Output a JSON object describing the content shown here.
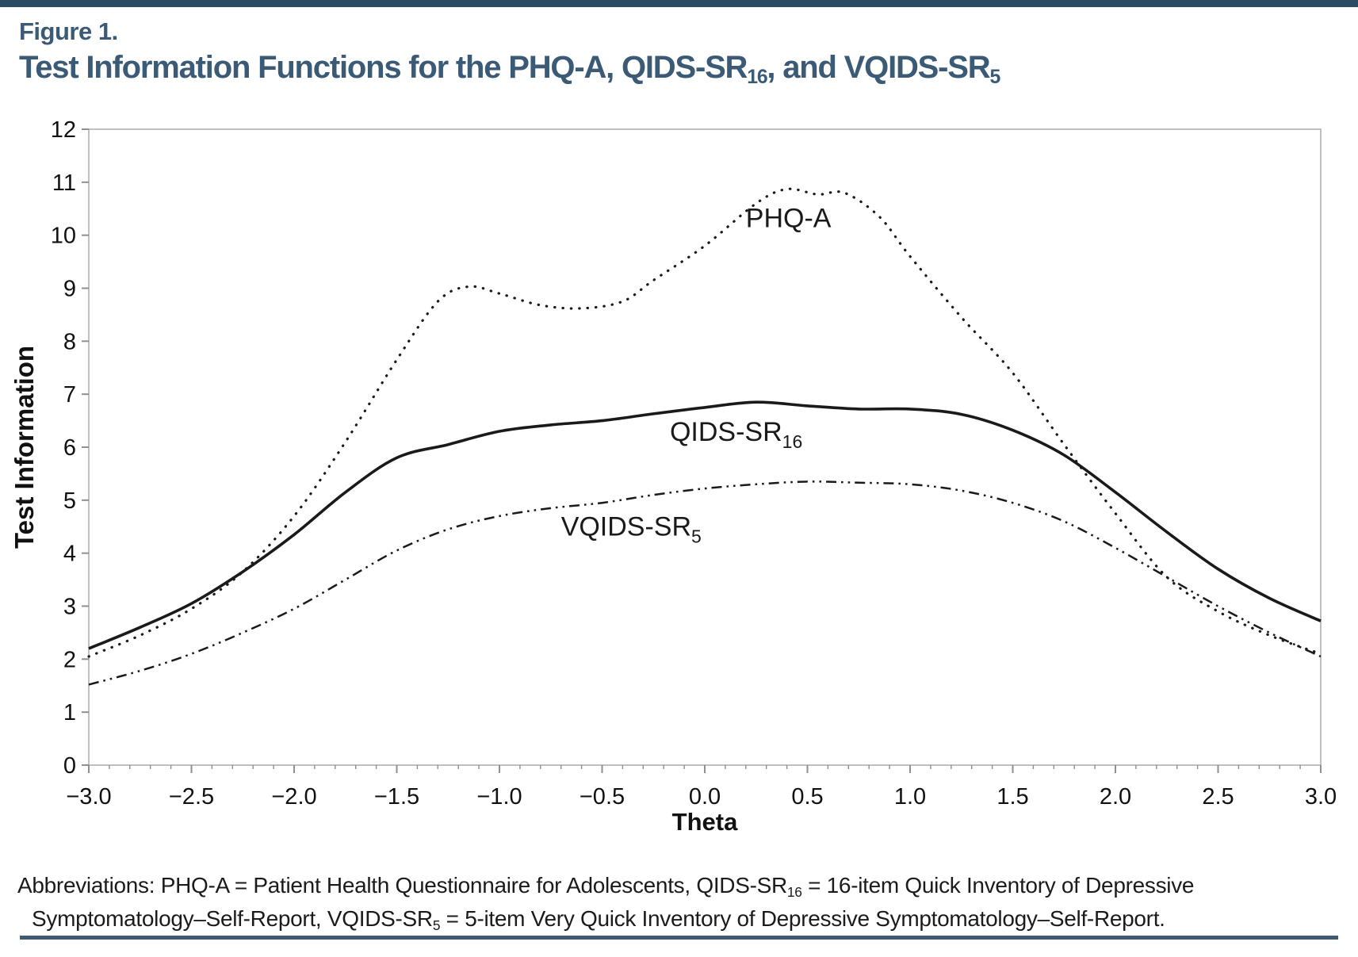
{
  "page": {
    "top_bar_color": "#2c4a64",
    "rule_color": "#3e5a75",
    "title_color": "#3b5a76",
    "text_color": "#1b1b1b"
  },
  "figure_label": "Figure 1.",
  "title_parts": [
    {
      "t": "Test Information Functions for the PHQ-A, QIDS-SR"
    },
    {
      "t": "16",
      "sub": true
    },
    {
      "t": ", and VQIDS-SR"
    },
    {
      "t": "5",
      "sub": true
    }
  ],
  "footnote_lines": [
    [
      {
        "t": "Abbreviations: PHQ-A = Patient Health Questionnaire for Adolescents, QIDS-SR"
      },
      {
        "t": "16",
        "sub": true
      },
      {
        "t": " = 16-item Quick Inventory of Depressive"
      }
    ],
    [
      {
        "t": "Symptomatology–Self-Report, VQIDS-SR"
      },
      {
        "t": "5",
        "sub": true
      },
      {
        "t": " = 5-item Very Quick Inventory of Depressive Symptomatology–Self-Report."
      }
    ]
  ],
  "chart_data": {
    "type": "line",
    "title": "",
    "xlabel": "Theta",
    "ylabel": "Test Information",
    "xlim": [
      -3,
      3
    ],
    "ylim": [
      0,
      12
    ],
    "x_major_step": 0.5,
    "x_minor_step": 0.1,
    "y_major_step": 1,
    "grid": false,
    "legend_position": "inline-curve-labels",
    "x_tick_labels": [
      "−3.0",
      "−2.5",
      "−2.0",
      "−1.5",
      "−1.0",
      "−0.5",
      "0.0",
      "0.5",
      "1.0",
      "1.5",
      "2.0",
      "2.5",
      "3.0"
    ],
    "y_tick_labels": [
      "0",
      "1",
      "2",
      "3",
      "4",
      "5",
      "6",
      "7",
      "8",
      "9",
      "10",
      "11",
      "12"
    ],
    "frame_color": "#ababab",
    "tick_color": "#8f8f8f",
    "line_color": "#1a1a1a",
    "series": [
      {
        "name": "PHQ-A",
        "style": "dotted",
        "label": {
          "text": "PHQ-A",
          "sub": "",
          "x": 0.2,
          "y": 10.15
        },
        "points": [
          [
            -3.0,
            2.05
          ],
          [
            -2.75,
            2.45
          ],
          [
            -2.5,
            2.95
          ],
          [
            -2.25,
            3.65
          ],
          [
            -2.0,
            4.7
          ],
          [
            -1.75,
            6.1
          ],
          [
            -1.5,
            7.65
          ],
          [
            -1.3,
            8.75
          ],
          [
            -1.15,
            9.03
          ],
          [
            -1.0,
            8.9
          ],
          [
            -0.8,
            8.68
          ],
          [
            -0.6,
            8.62
          ],
          [
            -0.4,
            8.75
          ],
          [
            -0.25,
            9.15
          ],
          [
            0.0,
            9.8
          ],
          [
            0.25,
            10.6
          ],
          [
            0.4,
            10.87
          ],
          [
            0.55,
            10.77
          ],
          [
            0.68,
            10.8
          ],
          [
            0.85,
            10.35
          ],
          [
            1.0,
            9.6
          ],
          [
            1.25,
            8.45
          ],
          [
            1.5,
            7.4
          ],
          [
            1.75,
            6.05
          ],
          [
            2.0,
            4.75
          ],
          [
            2.25,
            3.55
          ],
          [
            2.5,
            2.9
          ],
          [
            2.75,
            2.45
          ],
          [
            3.0,
            2.1
          ]
        ]
      },
      {
        "name": "QIDS-SR16",
        "style": "solid",
        "label": {
          "text": "QIDS-SR",
          "sub": "16",
          "x": -0.17,
          "y": 6.12
        },
        "points": [
          [
            -3.0,
            2.2
          ],
          [
            -2.75,
            2.6
          ],
          [
            -2.5,
            3.05
          ],
          [
            -2.25,
            3.65
          ],
          [
            -2.0,
            4.35
          ],
          [
            -1.75,
            5.15
          ],
          [
            -1.5,
            5.8
          ],
          [
            -1.25,
            6.05
          ],
          [
            -1.0,
            6.3
          ],
          [
            -0.75,
            6.42
          ],
          [
            -0.5,
            6.5
          ],
          [
            -0.25,
            6.63
          ],
          [
            0.0,
            6.75
          ],
          [
            0.25,
            6.85
          ],
          [
            0.5,
            6.78
          ],
          [
            0.75,
            6.72
          ],
          [
            1.0,
            6.72
          ],
          [
            1.25,
            6.62
          ],
          [
            1.5,
            6.32
          ],
          [
            1.75,
            5.85
          ],
          [
            2.0,
            5.15
          ],
          [
            2.25,
            4.4
          ],
          [
            2.5,
            3.7
          ],
          [
            2.75,
            3.15
          ],
          [
            3.0,
            2.72
          ]
        ]
      },
      {
        "name": "VQIDS-SR5",
        "style": "dashdotdot",
        "label": {
          "text": "VQIDS-SR",
          "sub": "5",
          "x": -0.7,
          "y": 4.33
        },
        "points": [
          [
            -3.0,
            1.52
          ],
          [
            -2.75,
            1.78
          ],
          [
            -2.5,
            2.1
          ],
          [
            -2.25,
            2.5
          ],
          [
            -2.0,
            2.95
          ],
          [
            -1.75,
            3.5
          ],
          [
            -1.5,
            4.05
          ],
          [
            -1.25,
            4.45
          ],
          [
            -1.0,
            4.7
          ],
          [
            -0.75,
            4.85
          ],
          [
            -0.5,
            4.95
          ],
          [
            -0.25,
            5.1
          ],
          [
            0.0,
            5.22
          ],
          [
            0.25,
            5.3
          ],
          [
            0.5,
            5.35
          ],
          [
            0.75,
            5.33
          ],
          [
            1.0,
            5.3
          ],
          [
            1.25,
            5.18
          ],
          [
            1.5,
            4.95
          ],
          [
            1.75,
            4.6
          ],
          [
            2.0,
            4.1
          ],
          [
            2.25,
            3.55
          ],
          [
            2.5,
            3.0
          ],
          [
            2.75,
            2.5
          ],
          [
            3.0,
            2.05
          ]
        ]
      }
    ]
  }
}
